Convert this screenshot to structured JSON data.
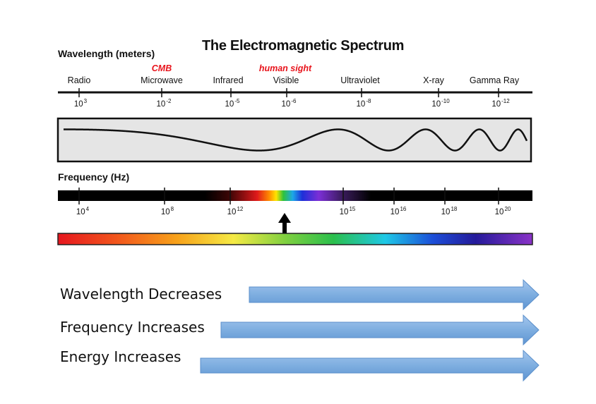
{
  "title": "The Electromagnetic Spectrum",
  "wavelength_axis": {
    "heading": "Wavelength (meters)",
    "bands": [
      "Radio",
      "Microwave",
      "Infrared",
      "Visible",
      "Ultraviolet",
      "X-ray",
      "Gamma Ray"
    ],
    "callouts": {
      "cmb": "CMB",
      "human_sight": "human sight"
    },
    "ticks": [
      {
        "base": "10",
        "exp": "3"
      },
      {
        "base": "10",
        "exp": "-2"
      },
      {
        "base": "10",
        "exp": "-5"
      },
      {
        "base": "10",
        "exp": "-6"
      },
      {
        "base": "10",
        "exp": "-8"
      },
      {
        "base": "10",
        "exp": "-10"
      },
      {
        "base": "10",
        "exp": "-12"
      }
    ]
  },
  "frequency_axis": {
    "heading": "Frequency (Hz)",
    "ticks": [
      {
        "base": "10",
        "exp": "4"
      },
      {
        "base": "10",
        "exp": "8"
      },
      {
        "base": "10",
        "exp": "12"
      },
      {
        "base": "10",
        "exp": "15"
      },
      {
        "base": "10",
        "exp": "16"
      },
      {
        "base": "10",
        "exp": "18"
      },
      {
        "base": "10",
        "exp": "20"
      }
    ]
  },
  "trends": {
    "wavelength": "Wavelength Decreases",
    "frequency": "Frequency Increases",
    "energy": "Energy Increases"
  },
  "colors": {
    "arrow_fill": "#7eaee0",
    "arrow_stroke": "#5b8fcb",
    "callout": "#e8131b",
    "wave_box": "#e5e5e5"
  }
}
